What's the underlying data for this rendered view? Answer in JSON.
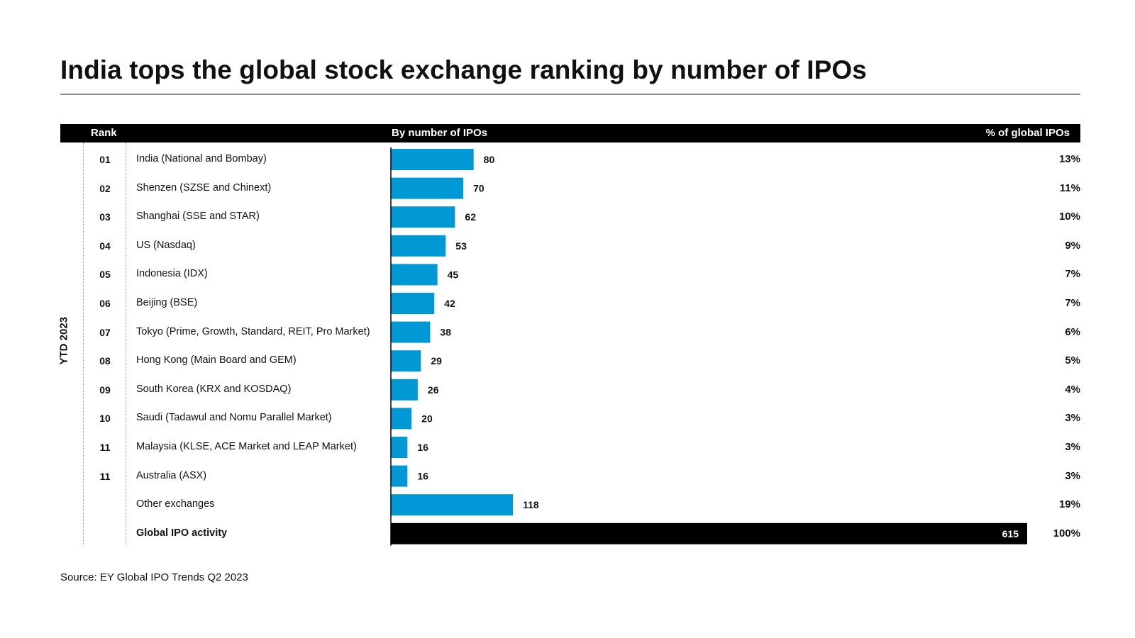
{
  "title": "India tops the global stock exchange ranking by number of IPOs",
  "header": {
    "rank": "Rank",
    "by_number": "By number of IPOs",
    "pct_global": "% of global IPOs"
  },
  "period_label": "YTD 2023",
  "source": "Source: EY Global IPO Trends Q2 2023",
  "colors": {
    "bar": "#0099d6",
    "total_bar": "#000000",
    "header_bg": "#000000"
  },
  "chart_data": {
    "type": "bar",
    "orientation": "horizontal",
    "title": "India tops the global stock exchange ranking by number of IPOs",
    "xlabel": "By number of IPOs",
    "ylabel": "",
    "rows": [
      {
        "rank": "01",
        "exchange": "India (National and Bombay)",
        "value": 80,
        "pct": "13%"
      },
      {
        "rank": "02",
        "exchange": "Shenzen (SZSE and Chinext)",
        "value": 70,
        "pct": "11%"
      },
      {
        "rank": "03",
        "exchange": "Shanghai (SSE and STAR)",
        "value": 62,
        "pct": "10%"
      },
      {
        "rank": "04",
        "exchange": "US (Nasdaq)",
        "value": 53,
        "pct": "9%"
      },
      {
        "rank": "05",
        "exchange": "Indonesia (IDX)",
        "value": 45,
        "pct": "7%"
      },
      {
        "rank": "06",
        "exchange": "Beijing (BSE)",
        "value": 42,
        "pct": "7%"
      },
      {
        "rank": "07",
        "exchange": "Tokyo (Prime, Growth, Standard, REIT, Pro Market)",
        "value": 38,
        "pct": "6%"
      },
      {
        "rank": "08",
        "exchange": "Hong Kong (Main Board and GEM)",
        "value": 29,
        "pct": "5%"
      },
      {
        "rank": "09",
        "exchange": "South Korea (KRX and KOSDAQ)",
        "value": 26,
        "pct": "4%"
      },
      {
        "rank": "10",
        "exchange": "Saudi (Tadawul and Nomu Parallel Market)",
        "value": 20,
        "pct": "3%"
      },
      {
        "rank": "11",
        "exchange": "Malaysia (KLSE, ACE Market and LEAP Market)",
        "value": 16,
        "pct": "3%"
      },
      {
        "rank": "11",
        "exchange": "Australia (ASX)",
        "value": 16,
        "pct": "3%"
      },
      {
        "rank": "",
        "exchange": "Other exchanges",
        "value": 118,
        "pct": "19%"
      },
      {
        "rank": "",
        "exchange": "Global IPO activity",
        "value": 615,
        "pct": "100%",
        "total": true
      }
    ],
    "scale": {
      "value_max": 615
    }
  }
}
